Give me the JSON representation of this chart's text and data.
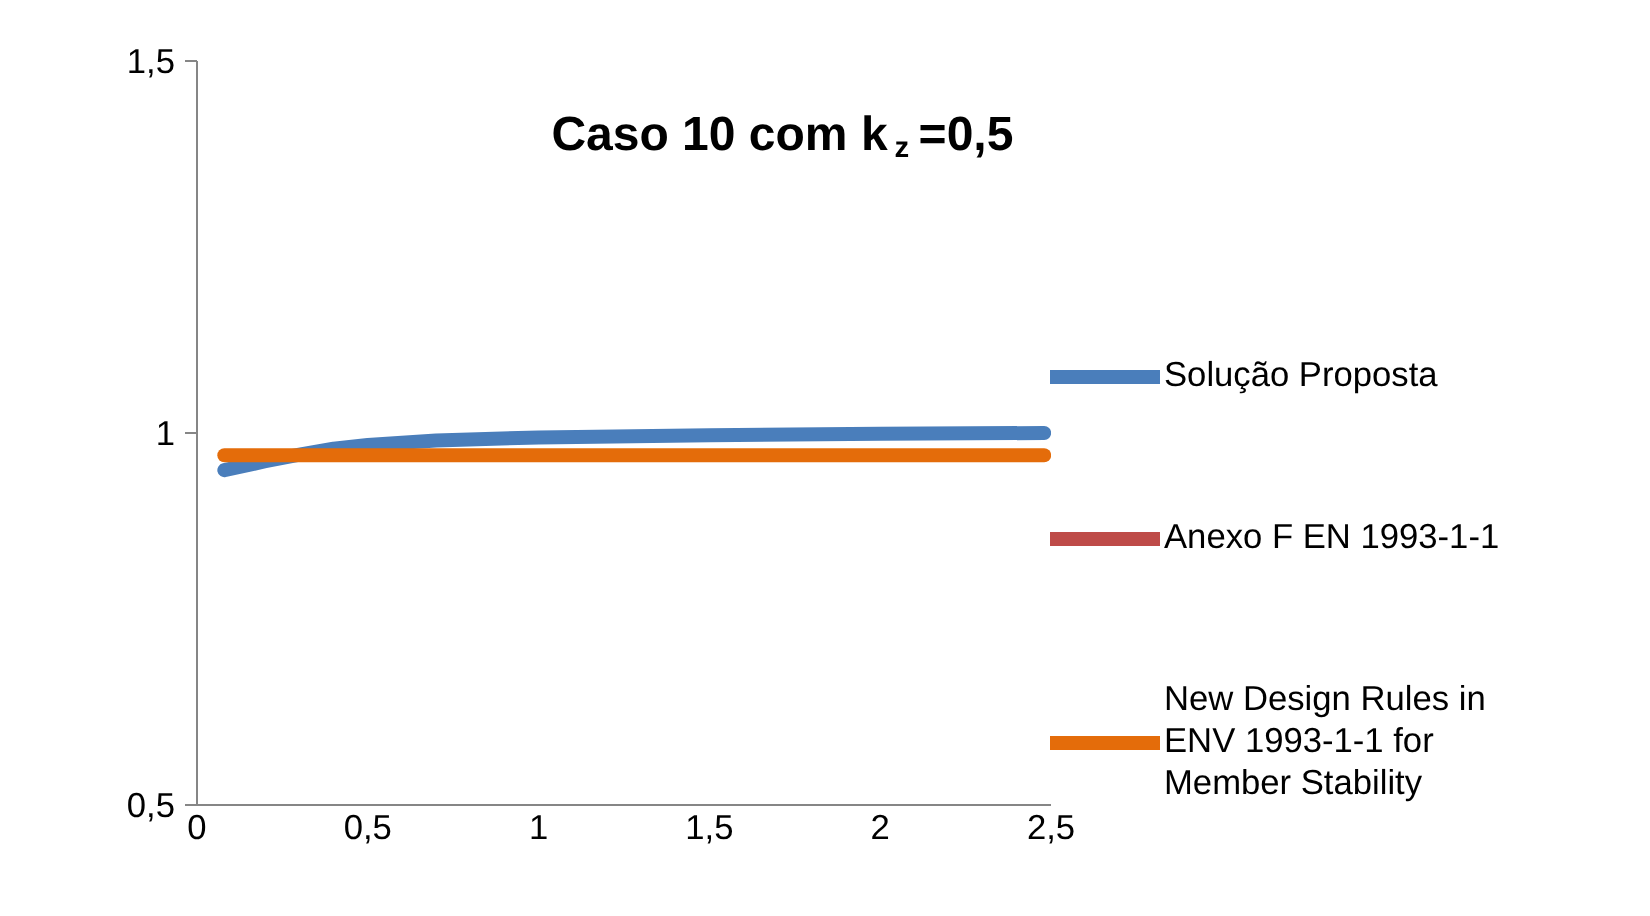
{
  "chart_data": {
    "type": "line",
    "title": "Caso 10 com k$_{z}$ =0,5",
    "x": [
      0.08,
      0.2,
      0.3,
      0.4,
      0.5,
      0.7,
      1,
      1.5,
      2,
      2.48
    ],
    "series": [
      {
        "name": "Solução Proposta",
        "color": "#4a7ebb",
        "values": [
          0.95,
          0.962,
          0.971,
          0.979,
          0.984,
          0.99,
          0.994,
          0.997,
          0.999,
          1.0
        ]
      },
      {
        "name": "Anexo F EN 1993-1-1",
        "color": "#be4b48",
        "values": [
          null,
          null,
          null,
          null,
          null,
          null,
          null,
          null,
          null,
          null
        ]
      },
      {
        "name": "New Design Rules in ENV 1993-1-1 for Member Stability",
        "color": "#e46c0a",
        "values": [
          0.97,
          0.97,
          0.97,
          0.97,
          0.97,
          0.97,
          0.97,
          0.97,
          0.97,
          0.97
        ]
      }
    ],
    "xlim": [
      0,
      2.5
    ],
    "ylim": [
      0.5,
      1.5
    ],
    "xticks": [
      {
        "value": 0,
        "label": "0"
      },
      {
        "value": 0.5,
        "label": "0,5"
      },
      {
        "value": 1,
        "label": "1"
      },
      {
        "value": 1.5,
        "label": "1,5"
      },
      {
        "value": 2,
        "label": "2"
      },
      {
        "value": 2.5,
        "label": "2,5"
      }
    ],
    "yticks": [
      {
        "value": 0.5,
        "label": "0,5"
      },
      {
        "value": 1,
        "label": "1"
      },
      {
        "value": 1.5,
        "label": "1,5"
      }
    ],
    "grid": false,
    "legend": "right",
    "marker": "none",
    "line_style": "solid"
  }
}
